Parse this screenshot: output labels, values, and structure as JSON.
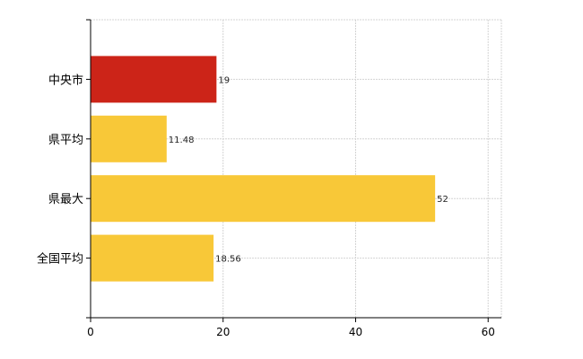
{
  "chart_data": {
    "type": "bar",
    "orientation": "horizontal",
    "categories": [
      "中央市",
      "県平均",
      "県最大",
      "全国平均"
    ],
    "values": [
      19,
      11.48,
      52,
      18.56
    ],
    "data_labels": [
      "19",
      "11.48",
      "52",
      "18.56"
    ],
    "colors": [
      "#cc2418",
      "#f8c838",
      "#f8c838",
      "#f8c838"
    ],
    "xlim": [
      0,
      62
    ],
    "xticks": [
      0,
      20,
      40,
      60
    ],
    "tick_labels": [
      "0",
      "20",
      "40",
      "60"
    ],
    "grid": true
  }
}
